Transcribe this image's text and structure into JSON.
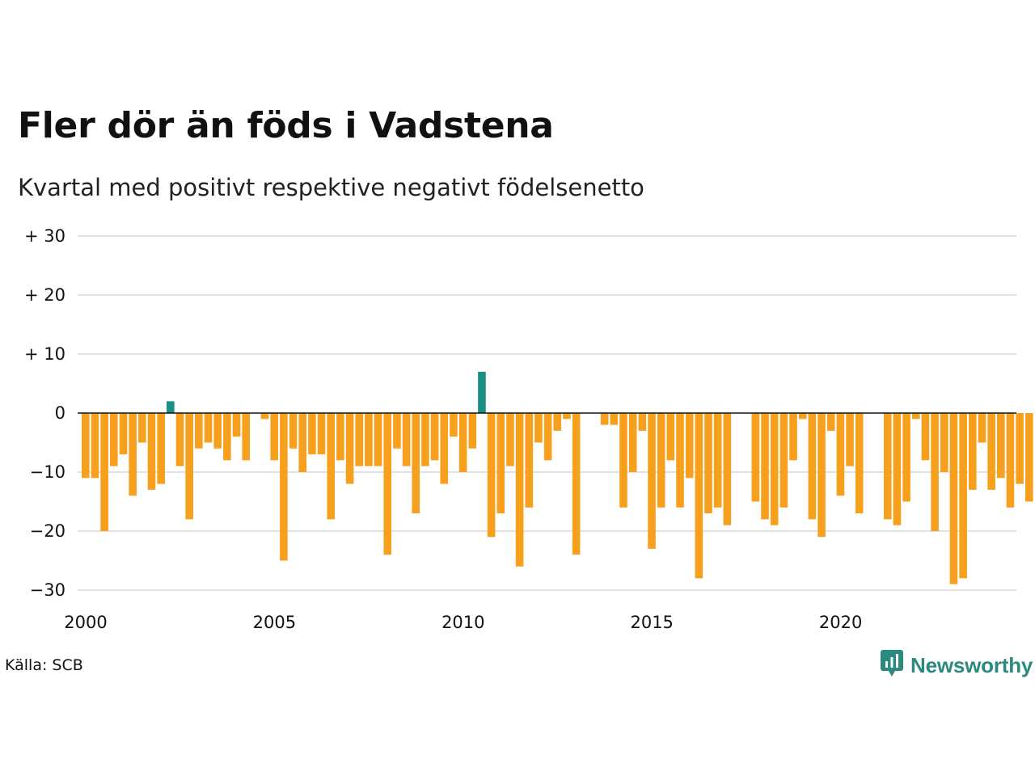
{
  "title": "Fler dör än föds i Vadstena",
  "subtitle": "Kvartal med positivt respektive negativt födelsenetto",
  "source": "Källa: SCB",
  "brand": "Newsworthy",
  "colors": {
    "positive": "#1a9084",
    "negative": "#f7a01e",
    "grid": "#e2e2e2",
    "zero_line": "#111111",
    "brand": "#2a8a80"
  },
  "chart_data": {
    "type": "bar",
    "title": "Fler dör än föds i Vadstena",
    "subtitle": "Kvartal med positivt respektive negativt födelsenetto",
    "x_start": "2000-Q1",
    "x_ticks": [
      "2000",
      "2005",
      "2010",
      "2015",
      "2020"
    ],
    "y_ticks": [
      30,
      20,
      10,
      0,
      -10,
      -20,
      -30
    ],
    "y_tick_labels": [
      "+ 30",
      "+ 20",
      "+ 10",
      "0",
      "−10",
      "−20",
      "−30"
    ],
    "ylim": [
      -33,
      30
    ],
    "grid": true,
    "values": [
      -11,
      -11,
      -20,
      -9,
      -7,
      -14,
      -5,
      -13,
      -12,
      2,
      -9,
      -18,
      -6,
      -5,
      -6,
      -8,
      -4,
      -8,
      0,
      -1,
      -8,
      -25,
      -6,
      -10,
      -7,
      -7,
      -18,
      -8,
      -12,
      -9,
      -9,
      -9,
      -24,
      -6,
      -9,
      -17,
      -9,
      -8,
      -12,
      -4,
      -10,
      -6,
      7,
      -21,
      -17,
      -9,
      -26,
      -16,
      -5,
      -8,
      -3,
      -1,
      -24,
      0,
      0,
      -2,
      -2,
      -16,
      -10,
      -3,
      -23,
      -16,
      -8,
      -16,
      -11,
      -28,
      -17,
      -16,
      -19,
      0,
      0,
      -15,
      -18,
      -19,
      -16,
      -8,
      -1,
      -18,
      -21,
      -3,
      -14,
      -9,
      -17,
      0,
      0,
      -18,
      -19,
      -15,
      -1,
      -8,
      -20,
      -10,
      -29,
      -28,
      -13,
      -5,
      -13,
      -11,
      -16,
      -12,
      -15
    ]
  }
}
